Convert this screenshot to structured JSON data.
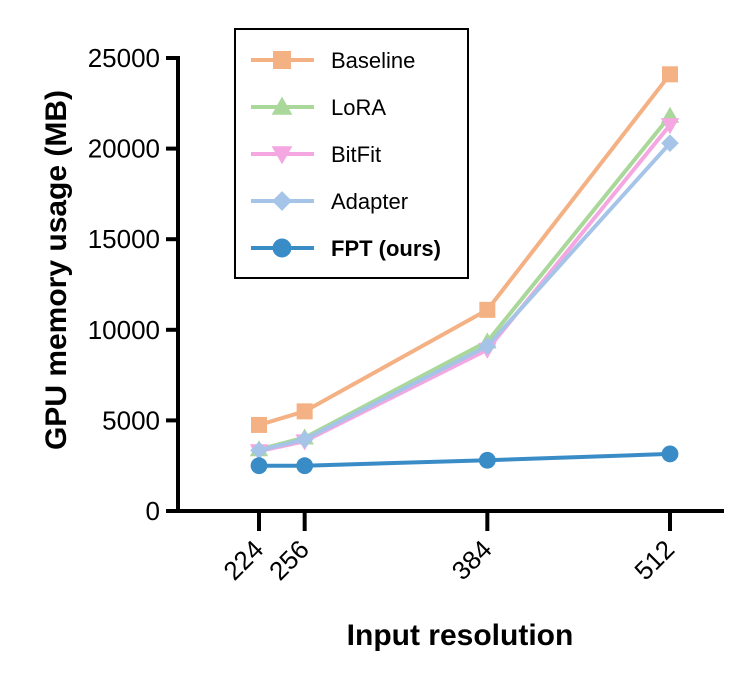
{
  "chart_data": {
    "type": "line",
    "xlabel": "Input resolution",
    "ylabel": "GPU memory usage (MB)",
    "x": [
      224,
      256,
      384,
      512
    ],
    "x_tick_labels": [
      "224",
      "256",
      "384",
      "512"
    ],
    "ylim": [
      0,
      25000
    ],
    "y_ticks": [
      0,
      5000,
      10000,
      15000,
      20000,
      25000
    ],
    "y_tick_labels": [
      "0",
      "5000",
      "10000",
      "15000",
      "20000",
      "25000"
    ],
    "grid": false,
    "legend_position": "top-left",
    "series": [
      {
        "name": "Baseline",
        "values": [
          4750,
          5500,
          11100,
          24100
        ],
        "color": "#f4b183",
        "marker": "square",
        "bold": false
      },
      {
        "name": "LoRA",
        "values": [
          3400,
          4050,
          9350,
          21800
        ],
        "color": "#a9d89a",
        "marker": "triangle-up",
        "bold": false
      },
      {
        "name": "BitFit",
        "values": [
          3300,
          3850,
          8900,
          21300
        ],
        "color": "#f4a7e0",
        "marker": "triangle-down",
        "bold": false
      },
      {
        "name": "Adapter",
        "values": [
          3350,
          3950,
          9100,
          20300
        ],
        "color": "#a6c4e8",
        "marker": "diamond",
        "bold": false
      },
      {
        "name": "FPT (ours)",
        "values": [
          2500,
          2500,
          2800,
          3150
        ],
        "color": "#3a8cc6",
        "marker": "circle",
        "bold": true
      }
    ]
  }
}
